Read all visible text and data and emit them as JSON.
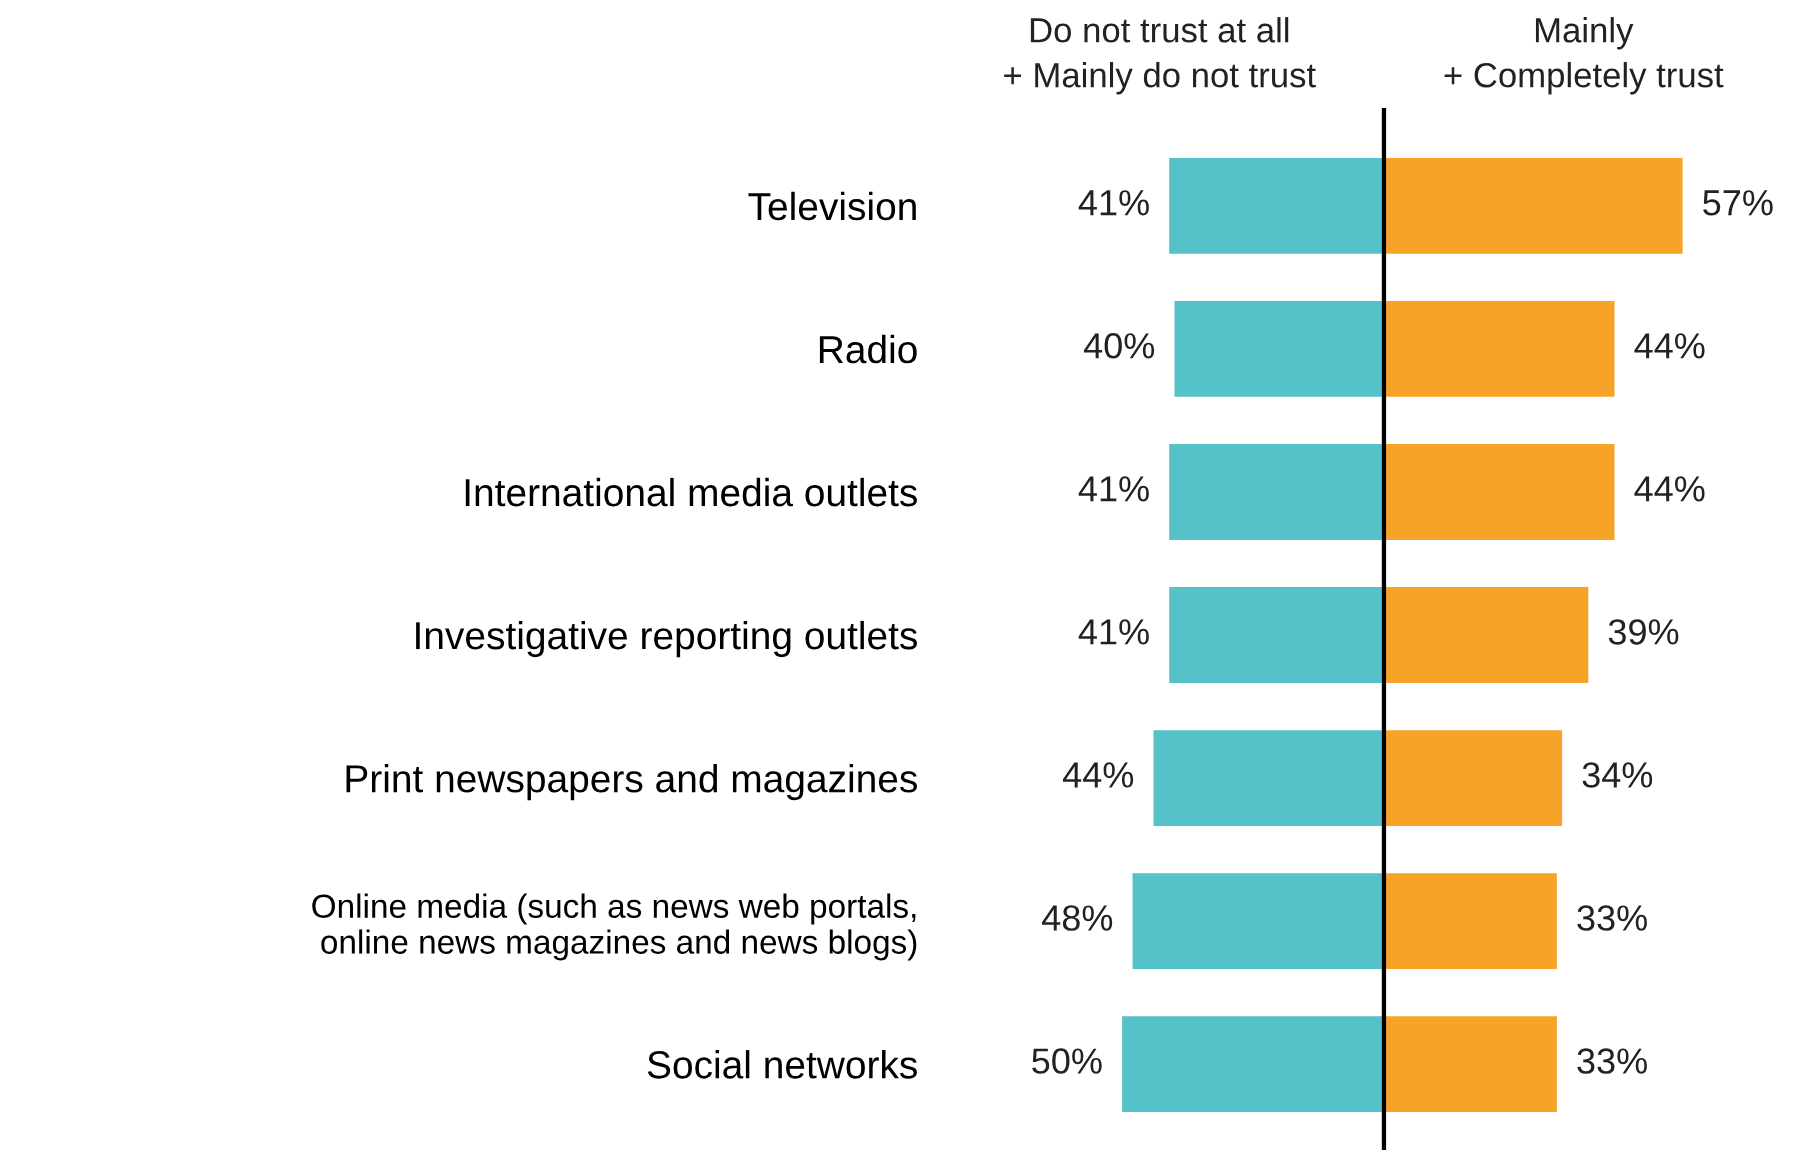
{
  "chart_data": [
    {
      "type": "bar",
      "orientation": "horizontal",
      "tick_labels": "y",
      "categories": [
        "Television",
        "Radio",
        "International media outlets",
        "Investigative reporting outlets",
        "Print newspapers and magazines",
        "Online media (such as news web portals,\nonline news magazines and news blogs)",
        "Social networks"
      ],
      "series": [
        {
          "name": "Do not trust at all\n+ Mainly do not trust",
          "color": "#55c1c8",
          "values": [
            41,
            40,
            41,
            41,
            44,
            48,
            50
          ],
          "value_labels": [
            "41%",
            "40%",
            "41%",
            "41%",
            "44%",
            "48%",
            "50%"
          ]
        }
      ]
    },
    {
      "type": "bar",
      "orientation": "horizontal",
      "tick_labels": false,
      "categories": [
        null,
        null,
        null,
        null,
        null,
        null,
        null
      ],
      "series": [
        {
          "name": "Mainly\n+ Completely trust",
          "color": "#f6a327",
          "values": [
            57,
            44,
            44,
            39,
            34,
            33,
            33
          ],
          "value_labels": [
            "57%",
            "44%",
            "44%",
            "39%",
            "34%",
            "33%",
            "33%"
          ]
        }
      ]
    }
  ]
}
